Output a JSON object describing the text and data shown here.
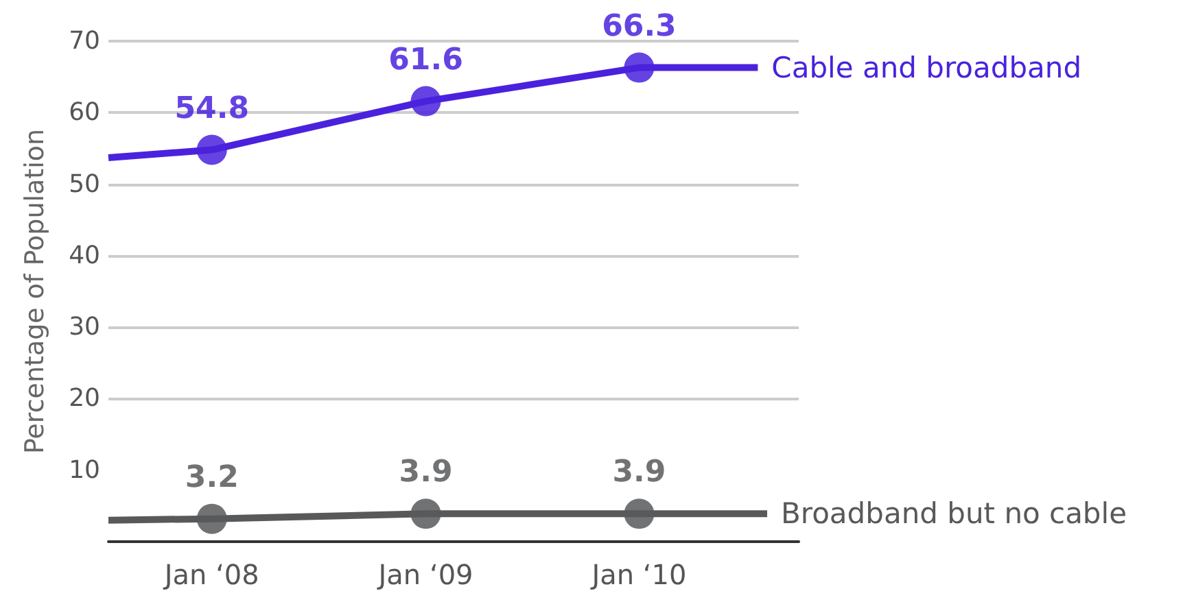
{
  "chart_data": {
    "type": "line",
    "ylabel": "Percentage of Population",
    "xlim": [
      "2007-07-08",
      "2010-10-01"
    ],
    "xticks": [
      {
        "value": "2008-01-01",
        "label": "Jan ‘08"
      },
      {
        "value": "2009-01-01",
        "label": "Jan ‘09"
      },
      {
        "value": "2010-01-01",
        "label": "Jan ‘10"
      }
    ],
    "ylim": [
      0,
      70
    ],
    "yticks": [
      10,
      20,
      30,
      40,
      50,
      60,
      70
    ],
    "series": [
      {
        "name": "Cable and broadband",
        "color": "#4a22dd",
        "x": [
          "2007-07-08",
          "2008-01-01",
          "2009-01-01",
          "2010-01-01",
          "2010-07-23"
        ],
        "values": [
          53.7,
          54.8,
          61.6,
          66.3,
          66.3
        ],
        "value_labels": [
          null,
          "54.8",
          "61.6",
          "66.3",
          null
        ]
      },
      {
        "name": "Broadband but no cable",
        "color": "#58595b",
        "x": [
          "2007-07-08",
          "2008-01-01",
          "2009-01-01",
          "2010-01-01",
          "2010-08-08"
        ],
        "values": [
          3.0,
          3.2,
          3.9,
          3.9,
          3.9
        ],
        "value_labels": [
          null,
          "3.2",
          "3.9",
          "3.9",
          null
        ]
      }
    ],
    "grid": "y",
    "legend": false,
    "marker": "circle",
    "line_style": "solid"
  }
}
